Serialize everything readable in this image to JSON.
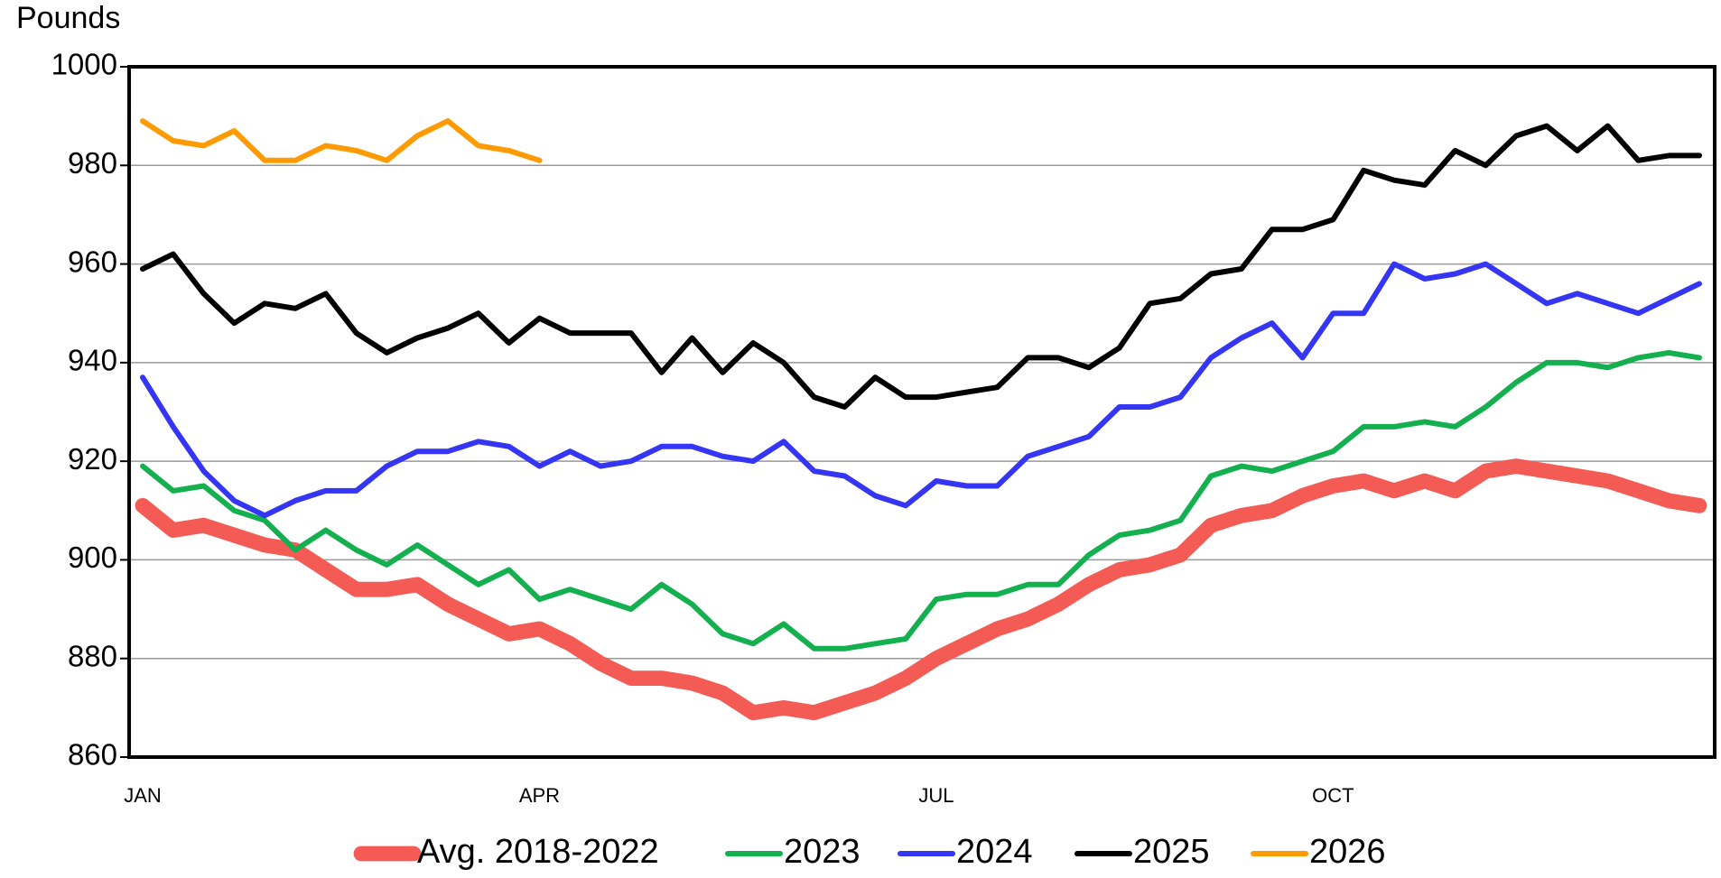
{
  "chart_data": {
    "type": "line",
    "y_label": "Pounds",
    "categories": [
      "JAN",
      null,
      null,
      null,
      null,
      null,
      null,
      null,
      null,
      null,
      null,
      null,
      null,
      "APR",
      null,
      null,
      null,
      null,
      null,
      null,
      null,
      null,
      null,
      null,
      null,
      null,
      "JUL",
      null,
      null,
      null,
      null,
      null,
      null,
      null,
      null,
      null,
      null,
      null,
      null,
      "OCT",
      null,
      null,
      null,
      null,
      null,
      null,
      null,
      null,
      null,
      null,
      null,
      null
    ],
    "series": [
      {
        "name": "Avg. 2018-2022",
        "color": "#f45b55",
        "width": 14,
        "values": [
          911,
          906,
          907,
          905,
          903,
          902,
          898,
          894,
          894,
          895,
          891,
          888,
          885,
          886,
          883,
          879,
          876,
          876,
          875,
          873,
          869,
          870,
          869,
          871,
          873,
          876,
          880,
          883,
          886,
          888,
          891,
          895,
          898,
          899,
          901,
          907,
          909,
          910,
          913,
          915,
          916,
          914,
          916,
          914,
          918,
          919,
          918,
          917,
          916,
          914,
          912,
          911
        ]
      },
      {
        "name": "2023",
        "color": "#14b04f",
        "width": 5,
        "values": [
          919,
          914,
          915,
          910,
          908,
          902,
          906,
          902,
          899,
          903,
          899,
          895,
          898,
          892,
          894,
          892,
          890,
          895,
          891,
          885,
          883,
          887,
          882,
          882,
          883,
          884,
          892,
          893,
          893,
          895,
          895,
          901,
          905,
          906,
          908,
          917,
          919,
          918,
          920,
          922,
          927,
          927,
          928,
          927,
          931,
          936,
          940,
          940,
          939,
          941,
          942,
          941
        ]
      },
      {
        "name": "2024",
        "color": "#3535f5",
        "width": 5,
        "values": [
          937,
          927,
          918,
          912,
          909,
          912,
          914,
          914,
          919,
          922,
          922,
          924,
          923,
          919,
          922,
          919,
          920,
          923,
          923,
          921,
          920,
          924,
          918,
          917,
          913,
          911,
          916,
          915,
          915,
          921,
          923,
          925,
          931,
          931,
          933,
          941,
          945,
          948,
          941,
          950,
          950,
          960,
          957,
          958,
          960,
          956,
          952,
          954,
          952,
          950,
          953,
          956
        ]
      },
      {
        "name": "2025",
        "color": "#000000",
        "width": 5,
        "values": [
          959,
          962,
          954,
          948,
          952,
          951,
          954,
          946,
          942,
          945,
          947,
          950,
          944,
          949,
          946,
          946,
          946,
          938,
          945,
          938,
          944,
          940,
          933,
          931,
          937,
          933,
          933,
          934,
          935,
          941,
          941,
          939,
          943,
          952,
          953,
          958,
          959,
          967,
          967,
          969,
          979,
          977,
          976,
          983,
          980,
          986,
          988,
          983,
          988,
          981,
          982,
          982
        ]
      },
      {
        "name": "2026",
        "color": "#ff9a00",
        "width": 5,
        "values": [
          989,
          985,
          984,
          987,
          981,
          981,
          984,
          983,
          981,
          986,
          989,
          984,
          983,
          981,
          null,
          null,
          null,
          null,
          null,
          null,
          null,
          null,
          null,
          null,
          null,
          null,
          null,
          null,
          null,
          null,
          null,
          null,
          null,
          null,
          null,
          null,
          null,
          null,
          null,
          null,
          null,
          null,
          null,
          null,
          null,
          null,
          null,
          null,
          null,
          null,
          null,
          null
        ]
      }
    ],
    "ylim": [
      860,
      1000
    ],
    "yticks": [
      860,
      880,
      900,
      920,
      940,
      960,
      980,
      1000
    ],
    "grid": true,
    "legend": "bottom"
  }
}
